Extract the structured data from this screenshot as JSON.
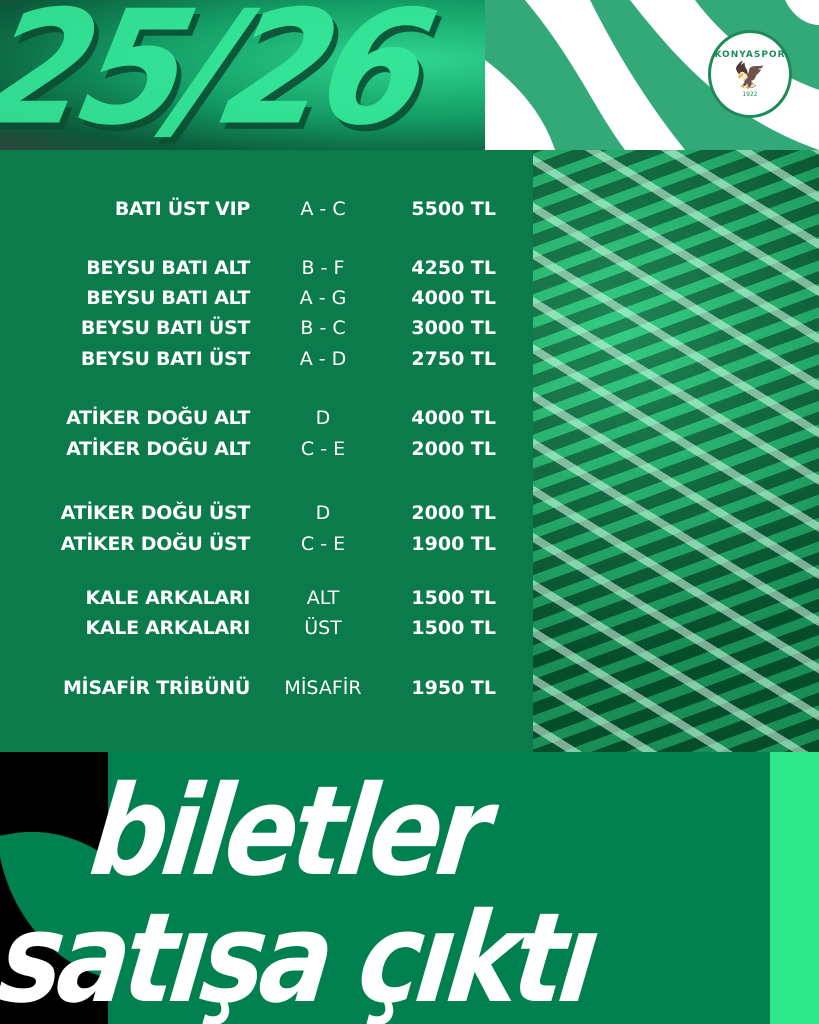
{
  "season": "25/26",
  "club": {
    "name": "KONYASPOR",
    "year": "1922"
  },
  "prices": [
    {
      "name": "BATI ÜST VIP",
      "zone": "A - C",
      "price": "5500 TL"
    },
    {
      "name": "BEYSU BATI ALT",
      "zone": "B - F",
      "price": "4250 TL"
    },
    {
      "name": "BEYSU BATI ALT",
      "zone": "A - G",
      "price": "4000 TL"
    },
    {
      "name": "BEYSU BATI ÜST",
      "zone": "B - C",
      "price": "3000 TL"
    },
    {
      "name": "BEYSU BATI ÜST",
      "zone": "A - D",
      "price": "2750 TL"
    },
    {
      "name": "ATİKER DOĞU ALT",
      "zone": "D",
      "price": "4000 TL"
    },
    {
      "name": "ATİKER DOĞU ALT",
      "zone": "C - E",
      "price": "2000 TL"
    },
    {
      "name": "ATİKER DOĞU ÜST",
      "zone": "D",
      "price": "2000 TL"
    },
    {
      "name": "ATİKER DOĞU ÜST",
      "zone": "C - E",
      "price": "1900 TL"
    },
    {
      "name": "KALE ARKALARI",
      "zone": "ALT",
      "price": "1500 TL"
    },
    {
      "name": "KALE ARKALARI",
      "zone": "ÜST",
      "price": "1500 TL"
    },
    {
      "name": "MİSAFİR TRİBÜNÜ",
      "zone": "MİSAFİR",
      "price": "1950 TL"
    }
  ],
  "headline": {
    "line1": "biletler",
    "line2": "satışa çıktı"
  },
  "colors": {
    "table": "#0b7b4b",
    "accent": "#2fe88a",
    "waves": "#33a878"
  }
}
